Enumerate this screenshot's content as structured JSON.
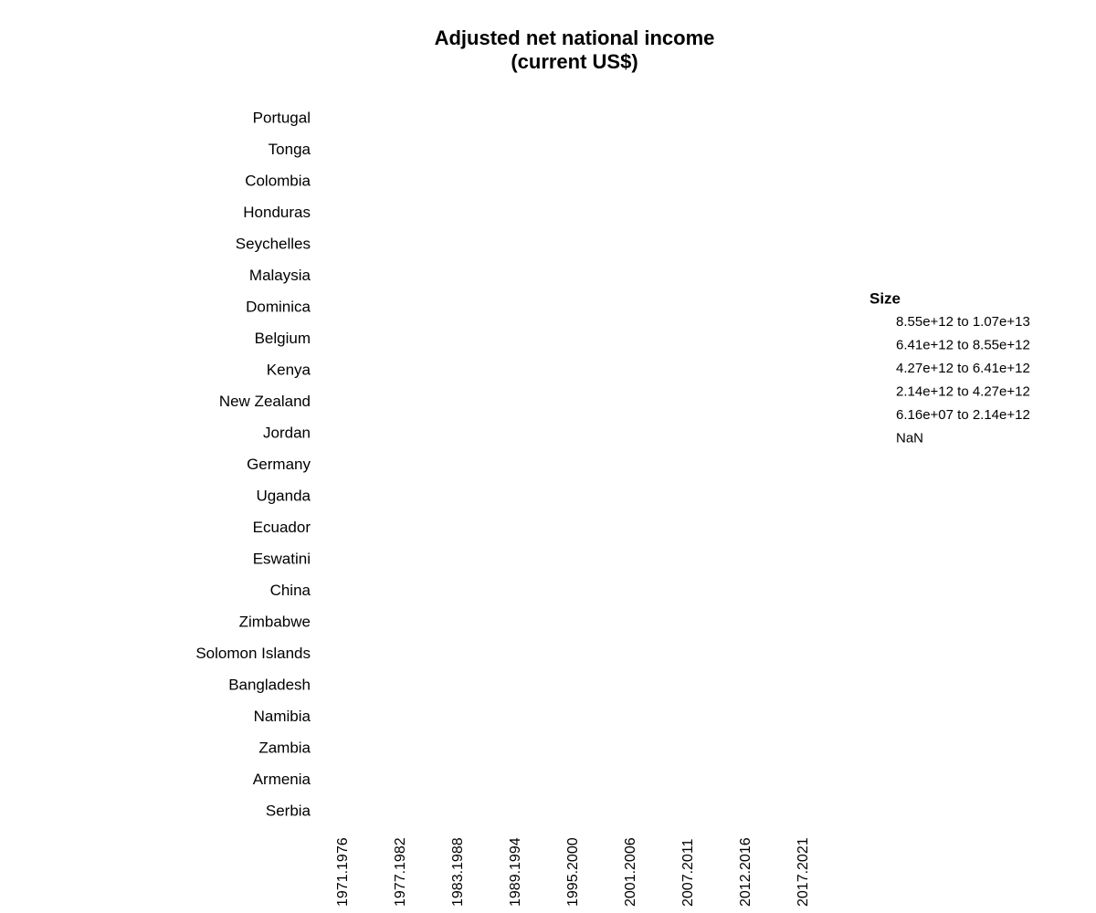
{
  "chart_data": {
    "type": "scatter",
    "title_lines": [
      "Adjusted net national income",
      "(current US$)"
    ],
    "categories_x": [
      "1971.1976",
      "1977.1982",
      "1983.1988",
      "1989.1994",
      "1995.2000",
      "2001.2006",
      "2007.2011",
      "2012.2016",
      "2017.2021"
    ],
    "categories_y": [
      "Portugal",
      "Tonga",
      "Colombia",
      "Honduras",
      "Seychelles",
      "Malaysia",
      "Dominica",
      "Belgium",
      "Kenya",
      "New Zealand",
      "Jordan",
      "Germany",
      "Uganda",
      "Ecuador",
      "Eswatini",
      "China",
      "Zimbabwe",
      "Solomon Islands",
      "Bangladesh",
      "Namibia",
      "Zambia",
      "Armenia",
      "Serbia"
    ],
    "points": [],
    "legend": {
      "title": "Size",
      "entries": [
        "8.55e+12 to 1.07e+13",
        "6.41e+12 to 8.55e+12",
        "4.27e+12 to 6.41e+12",
        "2.14e+12 to 4.27e+12",
        "6.16e+07 to 2.14e+12",
        "NaN"
      ],
      "placement": "right"
    },
    "grid": false
  }
}
